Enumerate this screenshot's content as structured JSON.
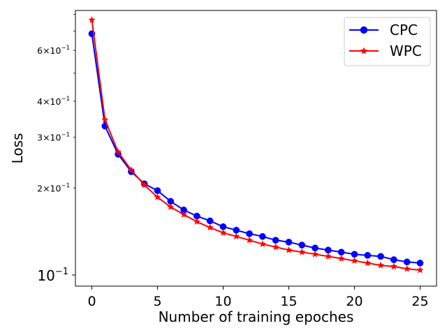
{
  "chart_data": {
    "type": "line",
    "xlabel": "Number of training epoches",
    "ylabel": "Loss",
    "xlim": [
      -1.25,
      26.25
    ],
    "ylim": [
      0.0915,
      0.825
    ],
    "yscale": "log",
    "grid": false,
    "legend_position": "top-right",
    "x_ticks": [
      0,
      5,
      10,
      15,
      20,
      25
    ],
    "y_major_ticks": [
      {
        "value": 0.1,
        "base": "10",
        "exp": "−1"
      }
    ],
    "y_minor_ticks": [
      {
        "value": 0.2,
        "coef": "2",
        "label_shown": true
      },
      {
        "value": 0.3,
        "coef": "3",
        "label_shown": true
      },
      {
        "value": 0.4,
        "coef": "4",
        "label_shown": true
      },
      {
        "value": 0.5,
        "coef": "5",
        "label_shown": false
      },
      {
        "value": 0.6,
        "coef": "6",
        "label_shown": true
      },
      {
        "value": 0.7,
        "coef": "7",
        "label_shown": false
      },
      {
        "value": 0.8,
        "coef": "8",
        "label_shown": false
      },
      {
        "value": 0.9,
        "coef": "9",
        "label_shown": false
      }
    ],
    "x": [
      0,
      1,
      2,
      3,
      4,
      5,
      6,
      7,
      8,
      9,
      10,
      11,
      12,
      13,
      14,
      15,
      16,
      17,
      18,
      19,
      20,
      21,
      22,
      23,
      24,
      25
    ],
    "series": [
      {
        "name": "CPC",
        "color": "#0000ff",
        "marker": "circle",
        "values": [
          0.685,
          0.328,
          0.262,
          0.228,
          0.207,
          0.196,
          0.18,
          0.168,
          0.16,
          0.154,
          0.147,
          0.143,
          0.139,
          0.136,
          0.132,
          0.13,
          0.127,
          0.124,
          0.122,
          0.12,
          0.118,
          0.117,
          0.116,
          0.113,
          0.111,
          0.11
        ]
      },
      {
        "name": "WPC",
        "color": "#ff0000",
        "marker": "star",
        "values": [
          0.765,
          0.345,
          0.267,
          0.231,
          0.205,
          0.186,
          0.172,
          0.162,
          0.153,
          0.146,
          0.14,
          0.136,
          0.132,
          0.128,
          0.125,
          0.122,
          0.12,
          0.118,
          0.116,
          0.114,
          0.112,
          0.11,
          0.108,
          0.107,
          0.105,
          0.104
        ]
      }
    ]
  }
}
